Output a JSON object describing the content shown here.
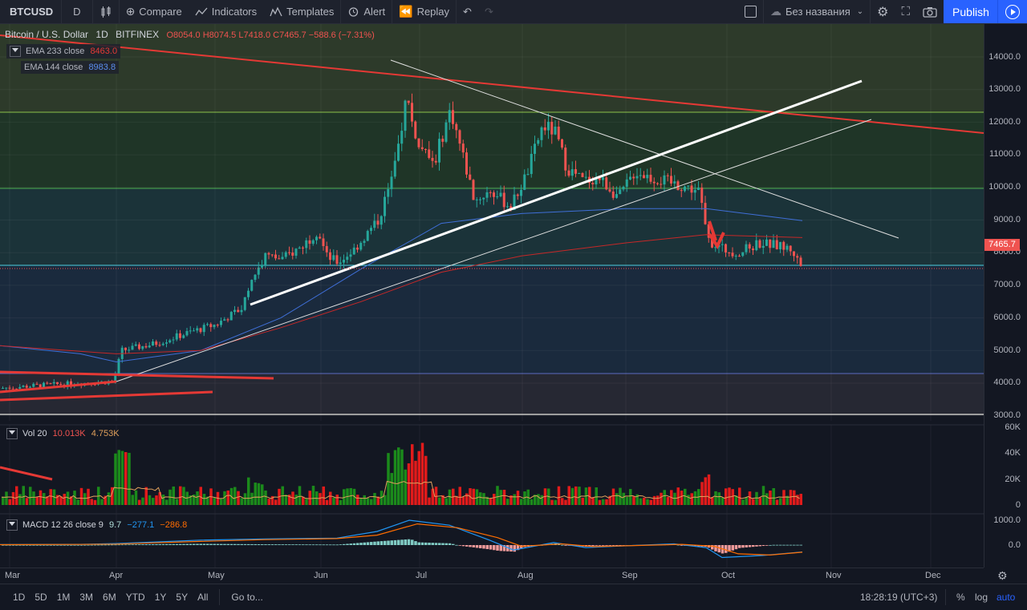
{
  "toolbar": {
    "symbol": "BTCUSD",
    "interval": "D",
    "compare": "Compare",
    "indicators": "Indicators",
    "templates": "Templates",
    "alert": "Alert",
    "replay": "Replay",
    "layout_name": "Без названия",
    "publish": "Publish"
  },
  "legend": {
    "title": "Bitcoin / U.S. Dollar",
    "interval": "1D",
    "exchange": "BITFINEX",
    "ohlc": "O8054.0 H8074.5 L7418.0 C7465.7 −588.6 (−7.31%)",
    "ema1_label": "EMA 233 close",
    "ema1_value": "8463.0",
    "ema2_label": "EMA 144 close",
    "ema2_value": "8983.8"
  },
  "vol_legend": {
    "label": "Vol 20",
    "v1": "10.013K",
    "v2": "4.753K"
  },
  "macd_legend": {
    "label": "MACD 12 26 close 9",
    "v1": "9.7",
    "v2": "−277.1",
    "v3": "−286.8"
  },
  "price_axis": [
    "14000.0",
    "13000.0",
    "12000.0",
    "11000.0",
    "10000.0",
    "9000.0",
    "8000.0",
    "7000.0",
    "6000.0",
    "5000.0",
    "4000.0",
    "3000.0"
  ],
  "current_price": "7465.7",
  "vol_axis": [
    "60K",
    "40K",
    "20K",
    "0"
  ],
  "macd_axis": [
    "1000.0",
    "0.0"
  ],
  "time_axis": [
    "Mar",
    "Apr",
    "May",
    "Jun",
    "Jul",
    "Aug",
    "Sep",
    "Oct",
    "Nov",
    "Dec"
  ],
  "bottom": {
    "ranges": [
      "1D",
      "5D",
      "1M",
      "3M",
      "6M",
      "YTD",
      "1Y",
      "5Y",
      "All"
    ],
    "goto": "Go to...",
    "clock": "18:28:19 (UTC+3)",
    "percent": "%",
    "log": "log",
    "auto": "auto"
  },
  "colors": {
    "up": "#26a69a",
    "down": "#ef5350",
    "accent": "#2962ff",
    "ema233": "#e53935",
    "ema144": "#3f6fd8"
  }
}
